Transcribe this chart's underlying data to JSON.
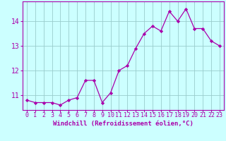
{
  "x": [
    0,
    1,
    2,
    3,
    4,
    5,
    6,
    7,
    8,
    9,
    10,
    11,
    12,
    13,
    14,
    15,
    16,
    17,
    18,
    19,
    20,
    21,
    22,
    23
  ],
  "y": [
    10.8,
    10.7,
    10.7,
    10.7,
    10.6,
    10.8,
    10.9,
    11.6,
    11.6,
    10.7,
    11.1,
    12.0,
    12.2,
    12.9,
    13.5,
    13.8,
    13.6,
    14.4,
    14.0,
    14.5,
    13.7,
    13.7,
    13.2,
    13.0
  ],
  "line_color": "#aa00aa",
  "marker": "D",
  "marker_size": 2.2,
  "bg_color": "#ccffff",
  "grid_color": "#99cccc",
  "xlabel": "Windchill (Refroidissement éolien,°C)",
  "xlabel_color": "#aa00aa",
  "tick_color": "#aa00aa",
  "ylim": [
    10.4,
    14.8
  ],
  "xlim": [
    -0.5,
    23.5
  ],
  "yticks": [
    11,
    12,
    13,
    14
  ],
  "xtick_labels": [
    "0",
    "1",
    "2",
    "3",
    "4",
    "5",
    "6",
    "7",
    "8",
    "9",
    "10",
    "11",
    "12",
    "13",
    "14",
    "15",
    "16",
    "17",
    "18",
    "19",
    "20",
    "21",
    "22",
    "23"
  ],
  "xlabel_fontsize": 6.5,
  "tick_fontsize": 6.0,
  "ytick_fontsize": 7.0
}
